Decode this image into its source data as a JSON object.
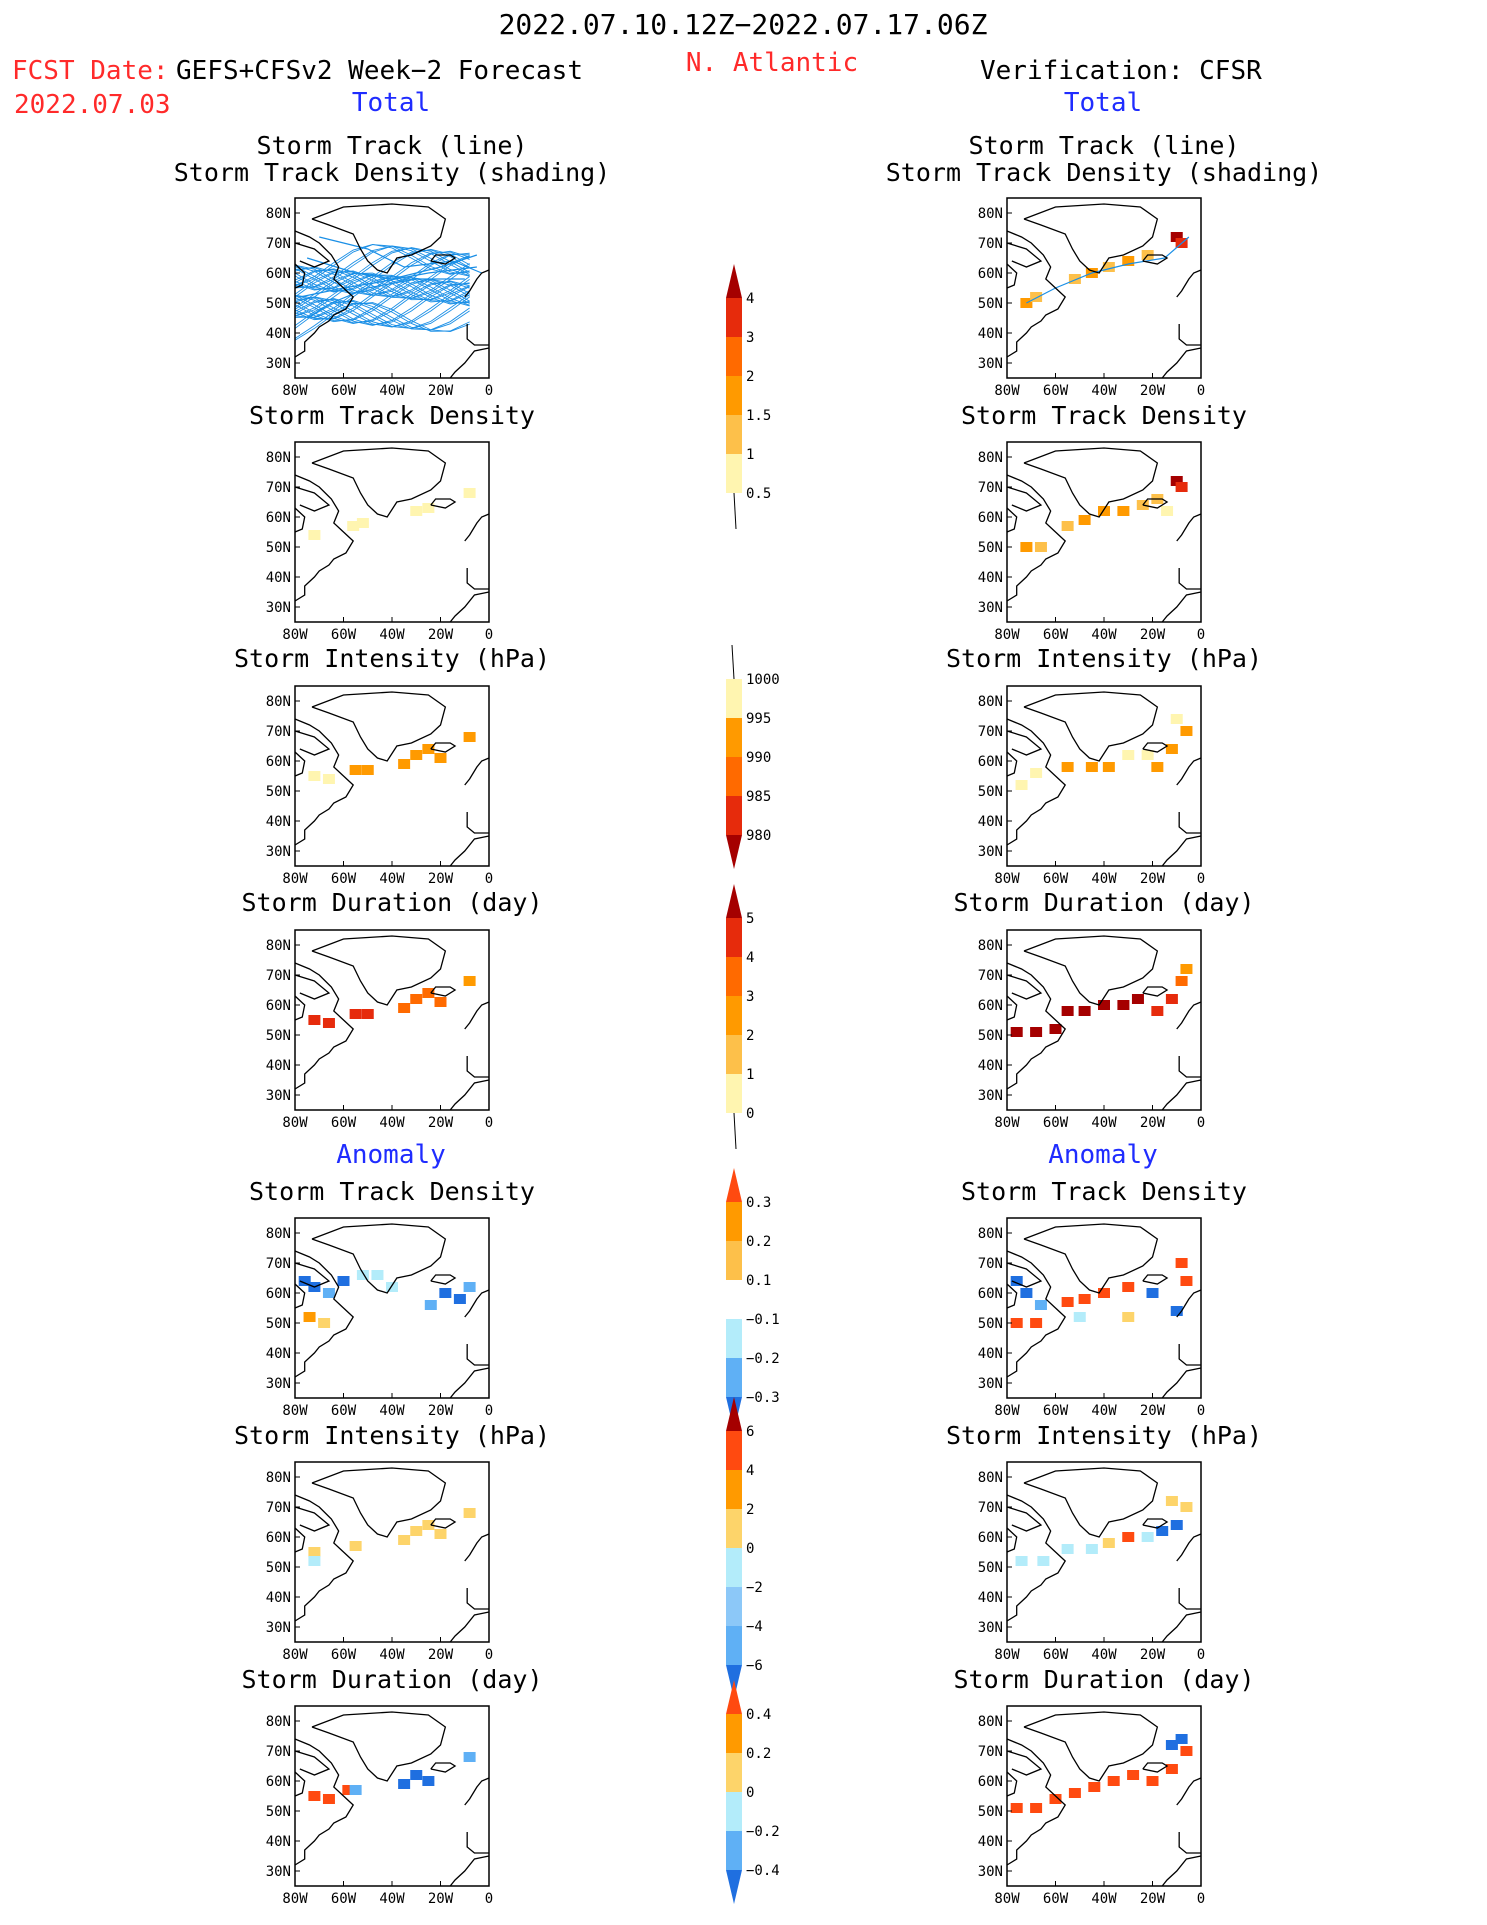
{
  "header": {
    "period": "2022.07.10.12Z−2022.07.17.06Z",
    "fcst_label": "FCST Date:",
    "fcst_model": "GEFS+CFSv2 Week−2 Forecast",
    "fcst_date": "2022.07.03",
    "region": "N. Atlantic",
    "verification": "Verification: CFSR",
    "left_section": "Total",
    "right_section": "Total",
    "left_anomaly": "Anomaly",
    "right_anomaly": "Anomaly"
  },
  "colors": {
    "title_red": "#ff2a2a",
    "section_blue": "#1f2cff",
    "track_line": "#1a8fe6",
    "c_pale_yellow": "#fff5b0",
    "c_light_orange": "#fdc04a",
    "c_orange": "#ff9a00",
    "c_dark_orange": "#ff6a00",
    "c_red": "#e62b0c",
    "c_dark_red": "#a50000",
    "c_light_blue": "#b3ecfa",
    "c_mid_blue": "#5fb0f5",
    "c_blue": "#1f6fe0"
  },
  "axes": {
    "lon_ticks": [
      "80W",
      "60W",
      "40W",
      "20W",
      "0"
    ],
    "lat_ticks": [
      "80N",
      "70N",
      "60N",
      "50N",
      "40N",
      "30N"
    ]
  },
  "panels": [
    {
      "id": "fc-track",
      "col": "left",
      "title1": "Storm Track (line)",
      "title2": "Storm Track Density (shading)"
    },
    {
      "id": "ob-track",
      "col": "right",
      "title1": "Storm Track (line)",
      "title2": "Storm Track Density (shading)"
    },
    {
      "id": "fc-density",
      "col": "left",
      "title1": "Storm Track Density",
      "title2": ""
    },
    {
      "id": "ob-density",
      "col": "right",
      "title1": "Storm Track Density",
      "title2": ""
    },
    {
      "id": "fc-intensity",
      "col": "left",
      "title1": "Storm Intensity (hPa)",
      "title2": ""
    },
    {
      "id": "ob-intensity",
      "col": "right",
      "title1": "Storm Intensity (hPa)",
      "title2": ""
    },
    {
      "id": "fc-duration",
      "col": "left",
      "title1": "Storm Duration (day)",
      "title2": ""
    },
    {
      "id": "ob-duration",
      "col": "right",
      "title1": "Storm Duration (day)",
      "title2": ""
    },
    {
      "id": "fa-density",
      "col": "left",
      "title1": "Storm Track Density",
      "title2": ""
    },
    {
      "id": "oa-density",
      "col": "right",
      "title1": "Storm Track Density",
      "title2": ""
    },
    {
      "id": "fa-intensity",
      "col": "left",
      "title1": "Storm Intensity (hPa)",
      "title2": ""
    },
    {
      "id": "oa-intensity",
      "col": "right",
      "title1": "Storm Intensity (hPa)",
      "title2": ""
    },
    {
      "id": "fa-duration",
      "col": "left",
      "title1": "Storm Duration (day)",
      "title2": ""
    },
    {
      "id": "oa-duration",
      "col": "right",
      "title1": "Storm Duration (day)",
      "title2": ""
    }
  ],
  "colorbars": [
    {
      "id": "cb-density",
      "labels": [
        "4",
        "3",
        "2",
        "1.5",
        "1",
        "0.5"
      ],
      "colors": [
        "#e62b0c",
        "#ff6a00",
        "#ff9a00",
        "#fdc04a",
        "#fff5b0"
      ],
      "top_arrow": "#a50000",
      "bottom_arrow": "#ffffff"
    },
    {
      "id": "cb-intensity",
      "labels": [
        "1000",
        "995",
        "990",
        "985",
        "980"
      ],
      "colors": [
        "#fff5b0",
        "#ff9a00",
        "#ff6a00",
        "#e62b0c"
      ],
      "top_arrow": "#ffffff",
      "bottom_arrow": "#a50000"
    },
    {
      "id": "cb-duration",
      "labels": [
        "5",
        "4",
        "3",
        "2",
        "1",
        "0"
      ],
      "colors": [
        "#e62b0c",
        "#ff6a00",
        "#ff9a00",
        "#fdc04a",
        "#fff5b0"
      ],
      "top_arrow": "#a50000",
      "bottom_arrow": "#ffffff"
    },
    {
      "id": "cb-anom-density",
      "labels": [
        "0.3",
        "0.2",
        "0.1",
        "−0.1",
        "−0.2",
        "−0.3"
      ],
      "colors": [
        "#ff9a00",
        "#fdc04a",
        "#ffffff",
        "#b3ecfa",
        "#5fb0f5"
      ],
      "top_arrow": "#ff4a10",
      "bottom_arrow": "#1f6fe0"
    },
    {
      "id": "cb-anom-intensity",
      "labels": [
        "6",
        "4",
        "2",
        "0",
        "−2",
        "−4",
        "−6"
      ],
      "colors": [
        "#ff4a10",
        "#ff9a00",
        "#fdd46a",
        "#b3ecfa",
        "#8cc8f8",
        "#5fb0f5"
      ],
      "top_arrow": "#a50000",
      "bottom_arrow": "#1f6fe0"
    },
    {
      "id": "cb-anom-duration",
      "labels": [
        "0.4",
        "0.2",
        "0",
        "−0.2",
        "−0.4"
      ],
      "colors": [
        "#ff9a00",
        "#fdd46a",
        "#b3ecfa",
        "#5fb0f5"
      ],
      "top_arrow": "#ff4a10",
      "bottom_arrow": "#1f6fe0"
    }
  ],
  "chart_data": [
    {
      "type": "heatmap",
      "panel": "fc-track",
      "title": "Storm Track (line) Storm Track Density (shading)",
      "xlim": [
        -80,
        0
      ],
      "ylim": [
        25,
        85
      ],
      "legend": "cb-density",
      "lines": [
        [
          [
            -75,
            65
          ],
          [
            -55,
            60
          ],
          [
            -40,
            58
          ],
          [
            -20,
            62
          ],
          [
            -5,
            66
          ]
        ],
        [
          [
            -78,
            52
          ],
          [
            -60,
            55
          ],
          [
            -45,
            57
          ],
          [
            -25,
            60
          ],
          [
            -5,
            62
          ]
        ],
        [
          [
            -70,
            72
          ],
          [
            -50,
            68
          ],
          [
            -35,
            62
          ],
          [
            -15,
            64
          ],
          [
            -3,
            60
          ]
        ],
        [
          [
            -75,
            45
          ],
          [
            -65,
            50
          ],
          [
            -50,
            55
          ],
          [
            -30,
            58
          ],
          [
            -10,
            58
          ]
        ]
      ]
    },
    {
      "type": "heatmap",
      "panel": "ob-track",
      "title": "Storm Track (line) Storm Track Density (shading)",
      "xlim": [
        -80,
        0
      ],
      "ylim": [
        25,
        85
      ],
      "legend": "cb-density",
      "cells": [
        [
          -72,
          50,
          1.5
        ],
        [
          -68,
          52,
          1
        ],
        [
          -52,
          58,
          1
        ],
        [
          -45,
          60,
          1.5
        ],
        [
          -38,
          62,
          1
        ],
        [
          -30,
          64,
          1.5
        ],
        [
          -22,
          66,
          1
        ],
        [
          -10,
          72,
          4
        ],
        [
          -8,
          70,
          3
        ]
      ],
      "lines": [
        [
          [
            -72,
            50
          ],
          [
            -60,
            55
          ],
          [
            -45,
            60
          ],
          [
            -30,
            63
          ],
          [
            -15,
            65
          ],
          [
            -5,
            72
          ]
        ]
      ]
    },
    {
      "type": "heatmap",
      "panel": "fc-density",
      "title": "Storm Track Density",
      "xlim": [
        -80,
        0
      ],
      "ylim": [
        25,
        85
      ],
      "legend": "cb-density",
      "cells": [
        [
          -72,
          54,
          0.5
        ],
        [
          -56,
          57,
          0.5
        ],
        [
          -52,
          58,
          0.5
        ],
        [
          -30,
          62,
          0.5
        ],
        [
          -25,
          63,
          0.5
        ],
        [
          -8,
          68,
          0.5
        ]
      ]
    },
    {
      "type": "heatmap",
      "panel": "ob-density",
      "title": "Storm Track Density",
      "xlim": [
        -80,
        0
      ],
      "ylim": [
        25,
        85
      ],
      "legend": "cb-density",
      "cells": [
        [
          -72,
          50,
          1.5
        ],
        [
          -66,
          50,
          1
        ],
        [
          -55,
          57,
          1
        ],
        [
          -48,
          59,
          1.5
        ],
        [
          -40,
          62,
          1.5
        ],
        [
          -32,
          62,
          1.5
        ],
        [
          -24,
          64,
          1
        ],
        [
          -18,
          66,
          1
        ],
        [
          -10,
          72,
          4
        ],
        [
          -8,
          70,
          3
        ],
        [
          -14,
          62,
          0.5
        ]
      ]
    },
    {
      "type": "heatmap",
      "panel": "fc-intensity",
      "title": "Storm Intensity (hPa)",
      "xlim": [
        -80,
        0
      ],
      "ylim": [
        25,
        85
      ],
      "legend": "cb-intensity",
      "cells": [
        [
          -72,
          55,
          1000
        ],
        [
          -66,
          54,
          1000
        ],
        [
          -55,
          57,
          995
        ],
        [
          -50,
          57,
          995
        ],
        [
          -35,
          59,
          995
        ],
        [
          -30,
          62,
          995
        ],
        [
          -25,
          64,
          995
        ],
        [
          -20,
          61,
          995
        ],
        [
          -8,
          68,
          995
        ]
      ]
    },
    {
      "type": "heatmap",
      "panel": "ob-intensity",
      "title": "Storm Intensity (hPa)",
      "xlim": [
        -80,
        0
      ],
      "ylim": [
        25,
        85
      ],
      "legend": "cb-intensity",
      "cells": [
        [
          -74,
          52,
          1000
        ],
        [
          -68,
          56,
          1000
        ],
        [
          -55,
          58,
          995
        ],
        [
          -45,
          58,
          995
        ],
        [
          -38,
          58,
          995
        ],
        [
          -30,
          62,
          1000
        ],
        [
          -22,
          62,
          1000
        ],
        [
          -18,
          58,
          995
        ],
        [
          -12,
          64,
          995
        ],
        [
          -6,
          70,
          995
        ],
        [
          -10,
          74,
          1000
        ]
      ]
    },
    {
      "type": "heatmap",
      "panel": "fc-duration",
      "title": "Storm Duration (day)",
      "xlim": [
        -80,
        0
      ],
      "ylim": [
        25,
        85
      ],
      "legend": "cb-duration",
      "cells": [
        [
          -72,
          55,
          4
        ],
        [
          -66,
          54,
          4
        ],
        [
          -55,
          57,
          4
        ],
        [
          -50,
          57,
          4
        ],
        [
          -35,
          59,
          3
        ],
        [
          -30,
          62,
          3
        ],
        [
          -25,
          64,
          3
        ],
        [
          -20,
          61,
          3
        ],
        [
          -8,
          68,
          2
        ]
      ]
    },
    {
      "type": "heatmap",
      "panel": "ob-duration",
      "title": "Storm Duration (day)",
      "xlim": [
        -80,
        0
      ],
      "ylim": [
        25,
        85
      ],
      "legend": "cb-duration",
      "cells": [
        [
          -76,
          51,
          5
        ],
        [
          -68,
          51,
          5
        ],
        [
          -60,
          52,
          5
        ],
        [
          -55,
          58,
          5
        ],
        [
          -48,
          58,
          5
        ],
        [
          -40,
          60,
          5
        ],
        [
          -32,
          60,
          5
        ],
        [
          -26,
          62,
          5
        ],
        [
          -18,
          58,
          4
        ],
        [
          -12,
          62,
          4
        ],
        [
          -8,
          68,
          3
        ],
        [
          -6,
          72,
          2
        ]
      ]
    },
    {
      "type": "heatmap",
      "panel": "fa-density",
      "title": "Storm Track Density",
      "xlim": [
        -80,
        0
      ],
      "ylim": [
        25,
        85
      ],
      "legend": "cb-anom-density",
      "cells": [
        [
          -76,
          64,
          -0.3
        ],
        [
          -72,
          62,
          -0.3
        ],
        [
          -66,
          60,
          -0.2
        ],
        [
          -60,
          64,
          -0.3
        ],
        [
          -52,
          66,
          -0.1
        ],
        [
          -46,
          66,
          -0.1
        ],
        [
          -40,
          62,
          -0.1
        ],
        [
          -74,
          52,
          0.2
        ],
        [
          -68,
          50,
          0.1
        ],
        [
          -18,
          60,
          -0.3
        ],
        [
          -12,
          58,
          -0.3
        ],
        [
          -24,
          56,
          -0.2
        ],
        [
          -8,
          62,
          -0.2
        ]
      ]
    },
    {
      "type": "heatmap",
      "panel": "oa-density",
      "title": "Storm Track Density",
      "xlim": [
        -80,
        0
      ],
      "ylim": [
        25,
        85
      ],
      "legend": "cb-anom-density",
      "cells": [
        [
          -76,
          64,
          -0.3
        ],
        [
          -72,
          60,
          -0.3
        ],
        [
          -66,
          56,
          -0.2
        ],
        [
          -76,
          50,
          0.3
        ],
        [
          -68,
          50,
          0.3
        ],
        [
          -55,
          57,
          0.3
        ],
        [
          -48,
          58,
          0.3
        ],
        [
          -40,
          60,
          0.3
        ],
        [
          -30,
          62,
          0.3
        ],
        [
          -20,
          60,
          -0.3
        ],
        [
          -8,
          70,
          0.3
        ],
        [
          -6,
          64,
          0.3
        ],
        [
          -10,
          54,
          -0.3
        ],
        [
          -50,
          52,
          -0.1
        ],
        [
          -30,
          52,
          0.1
        ]
      ]
    },
    {
      "type": "heatmap",
      "panel": "fa-intensity",
      "title": "Storm Intensity (hPa)",
      "xlim": [
        -80,
        0
      ],
      "ylim": [
        25,
        85
      ],
      "legend": "cb-anom-intensity",
      "cells": [
        [
          -72,
          55,
          2
        ],
        [
          -72,
          52,
          -2
        ],
        [
          -55,
          57,
          2
        ],
        [
          -35,
          59,
          2
        ],
        [
          -30,
          62,
          2
        ],
        [
          -25,
          64,
          2
        ],
        [
          -20,
          61,
          2
        ],
        [
          -8,
          68,
          2
        ]
      ]
    },
    {
      "type": "heatmap",
      "panel": "oa-intensity",
      "title": "Storm Intensity (hPa)",
      "xlim": [
        -80,
        0
      ],
      "ylim": [
        25,
        85
      ],
      "legend": "cb-anom-intensity",
      "cells": [
        [
          -74,
          52,
          -2
        ],
        [
          -65,
          52,
          -2
        ],
        [
          -55,
          56,
          -2
        ],
        [
          -45,
          56,
          -2
        ],
        [
          -38,
          58,
          2
        ],
        [
          -30,
          60,
          4
        ],
        [
          -22,
          60,
          -2
        ],
        [
          -16,
          62,
          -6
        ],
        [
          -10,
          64,
          -6
        ],
        [
          -6,
          70,
          2
        ],
        [
          -12,
          72,
          2
        ]
      ]
    },
    {
      "type": "heatmap",
      "panel": "fa-duration",
      "title": "Storm Duration (day)",
      "xlim": [
        -80,
        0
      ],
      "ylim": [
        25,
        85
      ],
      "legend": "cb-anom-duration",
      "cells": [
        [
          -72,
          55,
          0.4
        ],
        [
          -66,
          54,
          0.4
        ],
        [
          -58,
          57,
          0.4
        ],
        [
          -55,
          57,
          -0.2
        ],
        [
          -35,
          59,
          -0.4
        ],
        [
          -30,
          62,
          -0.4
        ],
        [
          -25,
          60,
          -0.4
        ],
        [
          -8,
          68,
          -0.2
        ]
      ]
    },
    {
      "type": "heatmap",
      "panel": "oa-duration",
      "title": "Storm Duration (day)",
      "xlim": [
        -80,
        0
      ],
      "ylim": [
        25,
        85
      ],
      "legend": "cb-anom-duration",
      "cells": [
        [
          -76,
          51,
          0.4
        ],
        [
          -68,
          51,
          0.4
        ],
        [
          -60,
          54,
          0.4
        ],
        [
          -52,
          56,
          0.4
        ],
        [
          -44,
          58,
          0.4
        ],
        [
          -36,
          60,
          0.4
        ],
        [
          -28,
          62,
          0.4
        ],
        [
          -20,
          60,
          0.4
        ],
        [
          -12,
          64,
          0.4
        ],
        [
          -6,
          70,
          0.4
        ],
        [
          -12,
          72,
          -0.4
        ],
        [
          -8,
          74,
          -0.4
        ]
      ]
    }
  ]
}
